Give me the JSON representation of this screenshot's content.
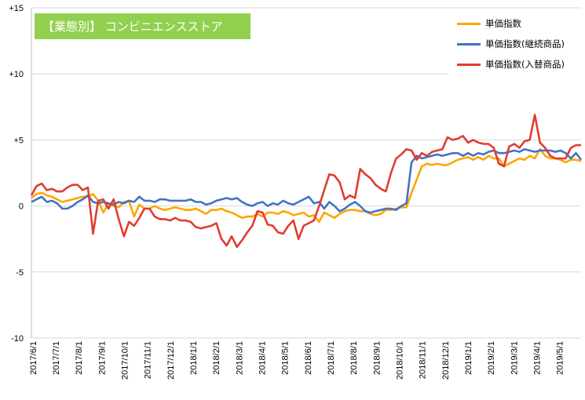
{
  "chart_data": {
    "type": "line",
    "title": "【業態別】 コンビニエンスストア",
    "title_bg_color": "#92D050",
    "legend_position": "top-right",
    "grid": "horizontal",
    "ylim": [
      -10,
      15
    ],
    "yticks": [
      {
        "value": 15,
        "label": "+15"
      },
      {
        "value": 10,
        "label": "+10"
      },
      {
        "value": 5,
        "label": "+5"
      },
      {
        "value": 0,
        "label": "0"
      },
      {
        "value": -5,
        "label": "-5"
      },
      {
        "value": -10,
        "label": "-10"
      }
    ],
    "xtick_labels": [
      "2017/6/1",
      "2017/7/1",
      "2017/8/1",
      "2017/9/1",
      "2017/10/1",
      "2017/11/1",
      "2017/12/1",
      "2018/1/1",
      "2018/2/1",
      "2018/3/1",
      "2018/4/1",
      "2018/5/1",
      "2018/6/1",
      "2018/7/1",
      "2018/8/1",
      "2018/9/1",
      "2018/10/1",
      "2018/11/1",
      "2018/12/1",
      "2019/1/1",
      "2019/2/1",
      "2019/3/1",
      "2019/4/1",
      "2019/5/1"
    ],
    "series": [
      {
        "name": "単価指数",
        "color": "#FFA500",
        "values": [
          0.6,
          0.9,
          1.0,
          0.8,
          0.7,
          0.5,
          0.3,
          0.4,
          0.5,
          0.6,
          0.7,
          0.7,
          0.9,
          0.4,
          -0.5,
          0.2,
          0.0,
          -0.1,
          0.3,
          0.4,
          -0.8,
          0.1,
          -0.2,
          -0.2,
          0.0,
          -0.2,
          -0.3,
          -0.2,
          -0.1,
          -0.2,
          -0.3,
          -0.3,
          -0.2,
          -0.4,
          -0.6,
          -0.3,
          -0.3,
          -0.2,
          -0.4,
          -0.5,
          -0.7,
          -0.9,
          -0.8,
          -0.8,
          -0.6,
          -0.8,
          -0.5,
          -0.5,
          -0.6,
          -0.4,
          -0.5,
          -0.7,
          -0.6,
          -0.5,
          -0.8,
          -0.7,
          -1.2,
          -0.5,
          -0.7,
          -0.9,
          -0.6,
          -0.4,
          -0.3,
          -0.3,
          -0.4,
          -0.4,
          -0.6,
          -0.7,
          -0.6,
          -0.3,
          -0.3,
          -0.2,
          -0.1,
          -0.1,
          1.0,
          2.0,
          3.0,
          3.2,
          3.1,
          3.2,
          3.1,
          3.1,
          3.3,
          3.5,
          3.6,
          3.7,
          3.5,
          3.7,
          3.5,
          3.8,
          3.6,
          3.6,
          3.0,
          3.2,
          3.4,
          3.6,
          3.5,
          3.8,
          3.6,
          4.3,
          3.8,
          3.6,
          3.6,
          3.5,
          3.3,
          3.5,
          3.5,
          3.4
        ]
      },
      {
        "name": "単価指数(継続商品)",
        "color": "#4472C4",
        "values": [
          0.3,
          0.5,
          0.7,
          0.3,
          0.4,
          0.2,
          -0.2,
          -0.2,
          0.0,
          0.3,
          0.5,
          0.8,
          0.3,
          0.2,
          0.3,
          0.2,
          0.1,
          0.3,
          0.2,
          0.4,
          0.3,
          0.7,
          0.4,
          0.4,
          0.3,
          0.5,
          0.5,
          0.4,
          0.4,
          0.4,
          0.4,
          0.5,
          0.3,
          0.3,
          0.1,
          0.2,
          0.4,
          0.5,
          0.6,
          0.5,
          0.6,
          0.3,
          0.1,
          0.0,
          0.2,
          0.3,
          0.0,
          0.2,
          0.1,
          0.4,
          0.2,
          0.1,
          0.3,
          0.5,
          0.7,
          0.2,
          0.3,
          -0.2,
          0.3,
          0.0,
          -0.4,
          -0.2,
          0.1,
          0.3,
          0.0,
          -0.4,
          -0.5,
          -0.4,
          -0.3,
          -0.2,
          -0.2,
          -0.3,
          0.0,
          0.2,
          3.3,
          3.8,
          3.6,
          3.7,
          3.8,
          3.9,
          3.8,
          3.9,
          4.0,
          4.0,
          3.8,
          4.0,
          3.8,
          4.0,
          3.9,
          4.1,
          4.2,
          4.0,
          4.0,
          4.1,
          4.2,
          4.1,
          4.3,
          4.2,
          4.1,
          4.2,
          4.2,
          4.2,
          4.1,
          4.2,
          4.0,
          3.6,
          4.0,
          3.5
        ]
      },
      {
        "name": "単価指数(入替商品)",
        "color": "#E03C31",
        "values": [
          0.8,
          1.5,
          1.7,
          1.2,
          1.3,
          1.1,
          1.1,
          1.4,
          1.6,
          1.6,
          1.2,
          1.4,
          -2.1,
          0.4,
          0.5,
          -0.2,
          0.5,
          -1.0,
          -2.3,
          -1.2,
          -1.5,
          -0.9,
          -0.2,
          -0.2,
          -0.8,
          -1.0,
          -1.0,
          -1.1,
          -0.9,
          -1.1,
          -1.1,
          -1.2,
          -1.6,
          -1.7,
          -1.6,
          -1.5,
          -1.3,
          -2.5,
          -3.0,
          -2.3,
          -3.1,
          -2.6,
          -2.0,
          -1.5,
          -0.4,
          -0.5,
          -1.4,
          -1.5,
          -2.0,
          -2.1,
          -1.5,
          -1.1,
          -2.5,
          -1.5,
          -1.3,
          -1.1,
          0.0,
          1.2,
          2.4,
          2.3,
          1.8,
          0.5,
          0.8,
          0.6,
          2.8,
          2.4,
          2.1,
          1.6,
          1.3,
          1.1,
          2.5,
          3.6,
          3.9,
          4.3,
          4.2,
          3.5,
          4.0,
          3.8,
          4.1,
          4.2,
          4.3,
          5.2,
          5.0,
          5.1,
          5.3,
          4.8,
          5.0,
          4.8,
          4.7,
          4.7,
          4.4,
          3.2,
          3.0,
          4.5,
          4.7,
          4.4,
          4.9,
          5.0,
          6.9,
          4.8,
          4.4,
          3.8,
          3.6,
          3.6,
          3.6,
          4.4,
          4.6,
          4.6
        ]
      }
    ]
  }
}
